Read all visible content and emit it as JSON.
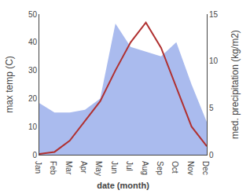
{
  "chart_data": {
    "type": "line",
    "categories": [
      "Jan",
      "Feb",
      "Mar",
      "Apr",
      "May",
      "Jun",
      "Jul",
      "Aug",
      "Sep",
      "Oct",
      "Nov",
      "Dec"
    ],
    "xlabel": "date (month)",
    "ylabel": "max temp (C)",
    "y2label": "med. precipitation (kg/m2)",
    "series": [
      {
        "type": "area",
        "axis": "y2",
        "color": "#aabbee",
        "values": [
          5.5,
          4.5,
          4.5,
          4.8,
          6.0,
          14.0,
          11.5,
          11.0,
          10.5,
          12.0,
          7.5,
          3.5
        ]
      },
      {
        "type": "line",
        "color": "#b03030",
        "values": [
          0.3,
          1.0,
          5,
          12,
          19,
          30,
          40,
          47,
          38,
          24,
          10,
          3
        ]
      }
    ],
    "ylim": [
      0,
      50
    ],
    "yticks": [
      0,
      10,
      20,
      30,
      40,
      50
    ],
    "y2lim": [
      0,
      15
    ],
    "y2ticks": [
      0,
      5,
      10,
      15
    ],
    "grid": false
  }
}
